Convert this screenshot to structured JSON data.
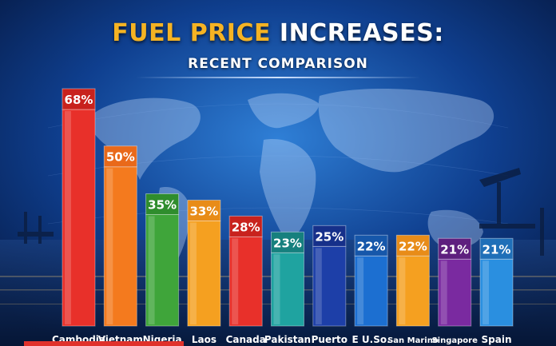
{
  "header": {
    "title_part1": "FUEL PRICE",
    "title_part2": "INCREASES:",
    "subtitle": "RECENT COMPARISON"
  },
  "colors": {
    "title_highlight": "#f5b323",
    "background": "#0a2a66"
  },
  "chart_data": {
    "type": "bar",
    "title": "FUEL PRICE INCREASES:",
    "subtitle": "RECENT COMPARISON",
    "categories": [
      "Cambodia",
      "Vietnam",
      "Nigeria",
      "Laos",
      "Canada",
      "Pakistan",
      "Puerto",
      "E U.So.",
      "San Marino",
      "Singapore",
      "Spain"
    ],
    "values": [
      68,
      50,
      35,
      33,
      28,
      23,
      25,
      22,
      22,
      21,
      21
    ],
    "value_labels": [
      "68%",
      "50%",
      "35%",
      "33%",
      "28%",
      "23%",
      "25%",
      "22%",
      "22%",
      "21%",
      "21%"
    ],
    "colors": [
      "#e8302a",
      "#f47a1e",
      "#3fa53a",
      "#f5a020",
      "#e8302a",
      "#1fa3a0",
      "#1d3fa8",
      "#1c6fd1",
      "#f5a020",
      "#7a2aa0",
      "#2a8fe0"
    ],
    "label_colors": [
      "#c8221d",
      "#e9691a",
      "#2f8d2d",
      "#e88c18",
      "#c8221d",
      "#16807e",
      "#16308a",
      "#1657aa",
      "#e88c18",
      "#5e1f7e",
      "#1f6fb8"
    ],
    "grid": false,
    "legend": "none"
  }
}
